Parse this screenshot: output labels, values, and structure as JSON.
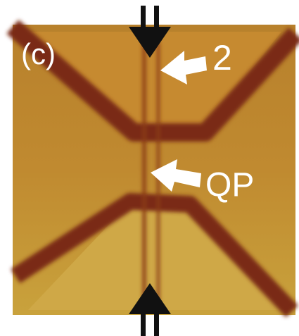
{
  "panel_label": "(c)",
  "annotations": [
    {
      "label": "2"
    },
    {
      "label": "QP"
    }
  ]
}
